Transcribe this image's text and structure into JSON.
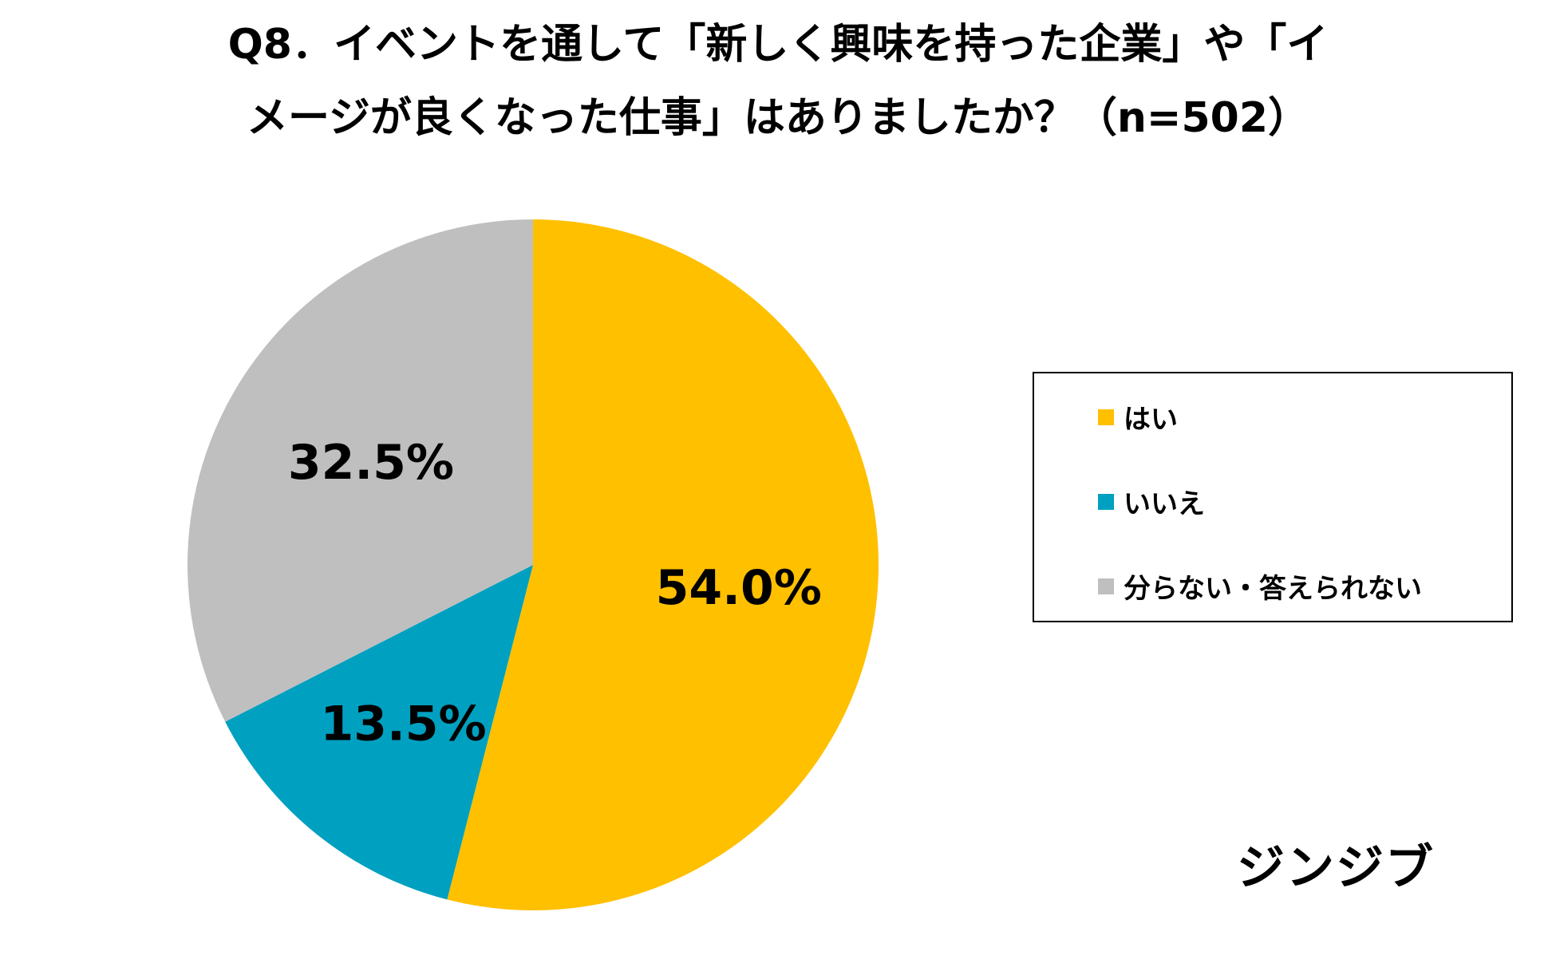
{
  "title": {
    "line1": "Q8．イベントを通して「新しく興味を持った企業」や「イ",
    "line2": "メージが良くなった仕事」はありましたか？（n=502）"
  },
  "chart_data": {
    "type": "pie",
    "categories": [
      "はい",
      "いいえ",
      "分らない・答えられない"
    ],
    "values": [
      54.0,
      13.5,
      32.5
    ],
    "labels": [
      "54.0%",
      "13.5%",
      "32.5%"
    ],
    "colors": [
      "#FFC000",
      "#00A0C0",
      "#BFBFBF"
    ],
    "legend_position": "right"
  },
  "brand": "ジンジブ"
}
